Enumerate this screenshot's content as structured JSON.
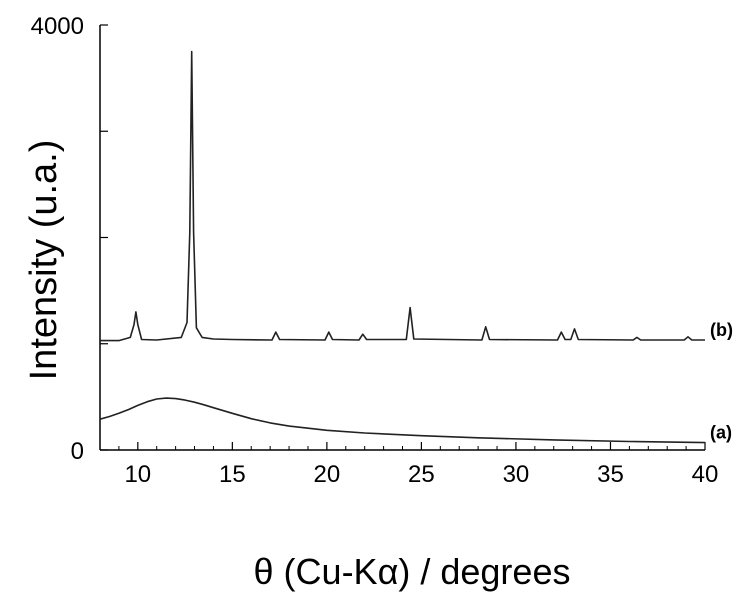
{
  "chart_data": {
    "type": "line",
    "title": "",
    "xlabel": "θ (Cu-Kα) / degrees",
    "ylabel": "Intensity (u.a.)",
    "xlim": [
      8,
      40
    ],
    "ylim": [
      0,
      4000
    ],
    "x_ticks": [
      "10",
      "15",
      "20",
      "25",
      "30",
      "35",
      "40"
    ],
    "y_ticks": [
      "0",
      "4000"
    ],
    "grid": false,
    "legend": "none",
    "series": [
      {
        "name": "(a)",
        "color": "#222222",
        "x": [
          8.0,
          8.5,
          9.0,
          9.5,
          10.0,
          10.5,
          11.0,
          11.5,
          12.0,
          12.5,
          13.0,
          13.5,
          14.0,
          15.0,
          16.0,
          17.0,
          18.0,
          20.0,
          22.0,
          25.0,
          28.0,
          32.0,
          36.0,
          40.0
        ],
        "y": [
          290,
          315,
          345,
          380,
          420,
          455,
          480,
          488,
          484,
          470,
          450,
          425,
          398,
          345,
          295,
          255,
          225,
          185,
          160,
          135,
          115,
          95,
          80,
          70
        ]
      },
      {
        "name": "(b)",
        "color": "#222222",
        "x": [
          8.0,
          9.0,
          9.6,
          9.8,
          9.9,
          10.0,
          10.2,
          11.0,
          12.3,
          12.6,
          12.75,
          12.85,
          12.95,
          13.1,
          13.4,
          14.0,
          15.0,
          17.1,
          17.3,
          17.5,
          19.9,
          20.1,
          20.3,
          21.7,
          21.9,
          22.1,
          24.2,
          24.4,
          24.6,
          28.2,
          28.4,
          28.6,
          32.2,
          32.4,
          32.6,
          32.9,
          33.1,
          33.3,
          36.2,
          36.4,
          36.6,
          38.9,
          39.1,
          39.3,
          40.0
        ],
        "y": [
          1030,
          1030,
          1060,
          1180,
          1300,
          1180,
          1040,
          1035,
          1060,
          1200,
          2050,
          3750,
          2050,
          1150,
          1060,
          1045,
          1040,
          1035,
          1110,
          1040,
          1035,
          1110,
          1040,
          1035,
          1090,
          1040,
          1040,
          1340,
          1045,
          1035,
          1160,
          1040,
          1035,
          1110,
          1040,
          1040,
          1140,
          1040,
          1035,
          1060,
          1035,
          1035,
          1065,
          1035,
          1035
        ]
      }
    ]
  }
}
